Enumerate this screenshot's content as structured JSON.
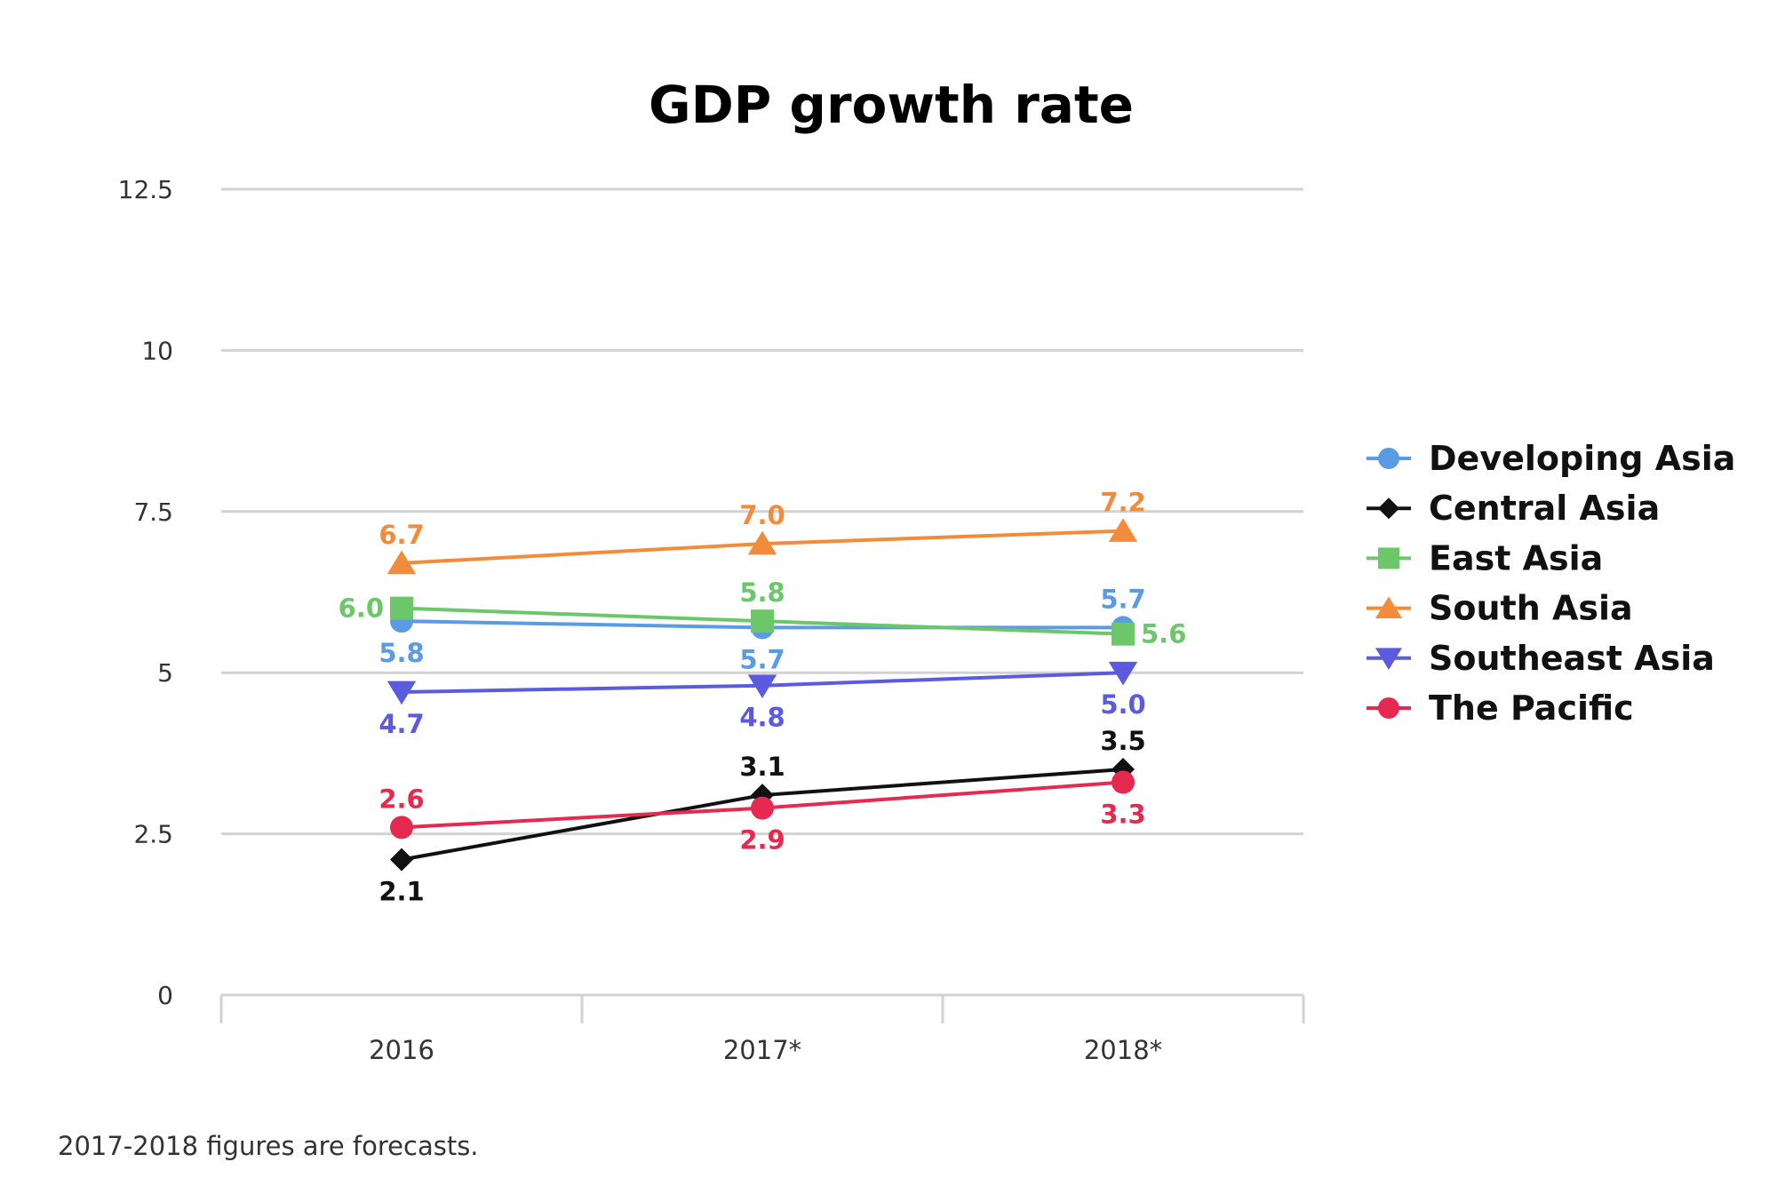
{
  "chart_data": {
    "type": "line",
    "title": "GDP growth rate",
    "xlabel": "",
    "ylabel": "",
    "categories": [
      "2016",
      "2017*",
      "2018*"
    ],
    "ylim": [
      0,
      12.5
    ],
    "yticks": [
      0,
      2.5,
      5,
      7.5,
      10,
      12.5
    ],
    "ytick_labels": [
      "0",
      "2.5",
      "5",
      "7.5",
      "10",
      "12.5"
    ],
    "grid": true,
    "legend_position": "right",
    "series": [
      {
        "name": "Developing Asia",
        "color": "#5B9BE6",
        "marker": "circle",
        "values": [
          5.8,
          5.7,
          5.7
        ],
        "labels": [
          "5.8",
          "5.7",
          "5.7"
        ],
        "label_pos": [
          "below",
          "below",
          "above"
        ]
      },
      {
        "name": "Central Asia",
        "color": "#111111",
        "marker": "diamond",
        "values": [
          2.1,
          3.1,
          3.5
        ],
        "labels": [
          "2.1",
          "3.1",
          "3.5"
        ],
        "label_pos": [
          "below",
          "above",
          "above"
        ]
      },
      {
        "name": "East Asia",
        "color": "#6CC76A",
        "marker": "square",
        "values": [
          6.0,
          5.8,
          5.6
        ],
        "labels": [
          "6.0",
          "5.8",
          "5.6"
        ],
        "label_pos": [
          "left",
          "above",
          "right"
        ]
      },
      {
        "name": "South Asia",
        "color": "#F28C3A",
        "marker": "triangle-up",
        "values": [
          6.7,
          7.0,
          7.2
        ],
        "labels": [
          "6.7",
          "7.0",
          "7.2"
        ],
        "label_pos": [
          "above",
          "above",
          "above"
        ]
      },
      {
        "name": "Southeast Asia",
        "color": "#5B5BDF",
        "marker": "triangle-down",
        "values": [
          4.7,
          4.8,
          5.0
        ],
        "labels": [
          "4.7",
          "4.8",
          "5.0"
        ],
        "label_pos": [
          "below",
          "below",
          "below"
        ]
      },
      {
        "name": "The Pacific",
        "color": "#E5294F",
        "marker": "circle",
        "values": [
          2.6,
          2.9,
          3.3
        ],
        "labels": [
          "2.6",
          "2.9",
          "3.3"
        ],
        "label_pos": [
          "above",
          "below",
          "below"
        ]
      }
    ],
    "footnote": "2017-2018 figures are forecasts."
  }
}
